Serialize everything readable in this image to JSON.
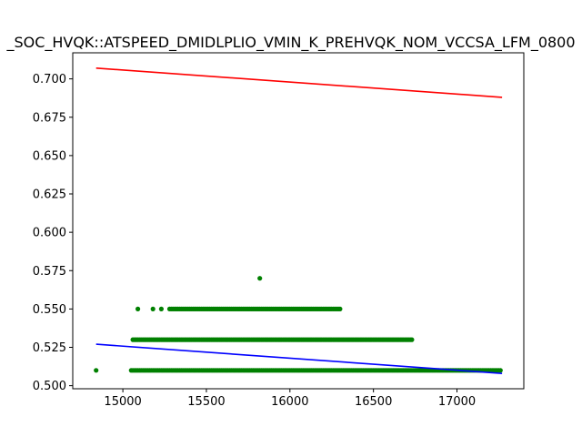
{
  "chart_data": {
    "type": "scatter",
    "title": "_SOC_HVQK::ATSPEED_DMIDLPLIO_VMIN_K_PREHVQK_NOM_VCCSA_LFM_0800",
    "xlabel": "",
    "ylabel": "",
    "xlim": [
      14700,
      17400
    ],
    "ylim": [
      0.498,
      0.717
    ],
    "xticks": [
      15000,
      15500,
      16000,
      16500,
      17000
    ],
    "yticks": [
      0.5,
      0.525,
      0.55,
      0.575,
      0.6,
      0.625,
      0.65,
      0.675,
      0.7
    ],
    "xtick_labels": [
      "15000",
      "15500",
      "16000",
      "16500",
      "17000"
    ],
    "ytick_labels": [
      "0.500",
      "0.525",
      "0.550",
      "0.575",
      "0.600",
      "0.625",
      "0.650",
      "0.675",
      "0.700"
    ],
    "grid": false,
    "legend": "none",
    "colors": {
      "points": "#008000",
      "upper_line": "#ff0000",
      "lower_line": "#0000ff"
    },
    "series": [
      {
        "kind": "points",
        "bands": [
          {
            "y": 0.55,
            "x_min": 15280,
            "x_max": 16300,
            "sparse_left": [
              15090,
              15180,
              15230
            ]
          },
          {
            "y": 0.53,
            "x_min": 15060,
            "x_max": 16730
          },
          {
            "y": 0.51,
            "x_min": 15050,
            "x_max": 17260,
            "sparse_left": [
              14840
            ]
          }
        ],
        "outliers": [
          {
            "x": 15820,
            "y": 0.57
          }
        ]
      },
      {
        "kind": "line",
        "color": "upper_line",
        "x": [
          14840,
          17270
        ],
        "y": [
          0.707,
          0.688
        ]
      },
      {
        "kind": "line",
        "color": "lower_line",
        "x": [
          14840,
          17270
        ],
        "y": [
          0.527,
          0.508
        ]
      }
    ]
  }
}
